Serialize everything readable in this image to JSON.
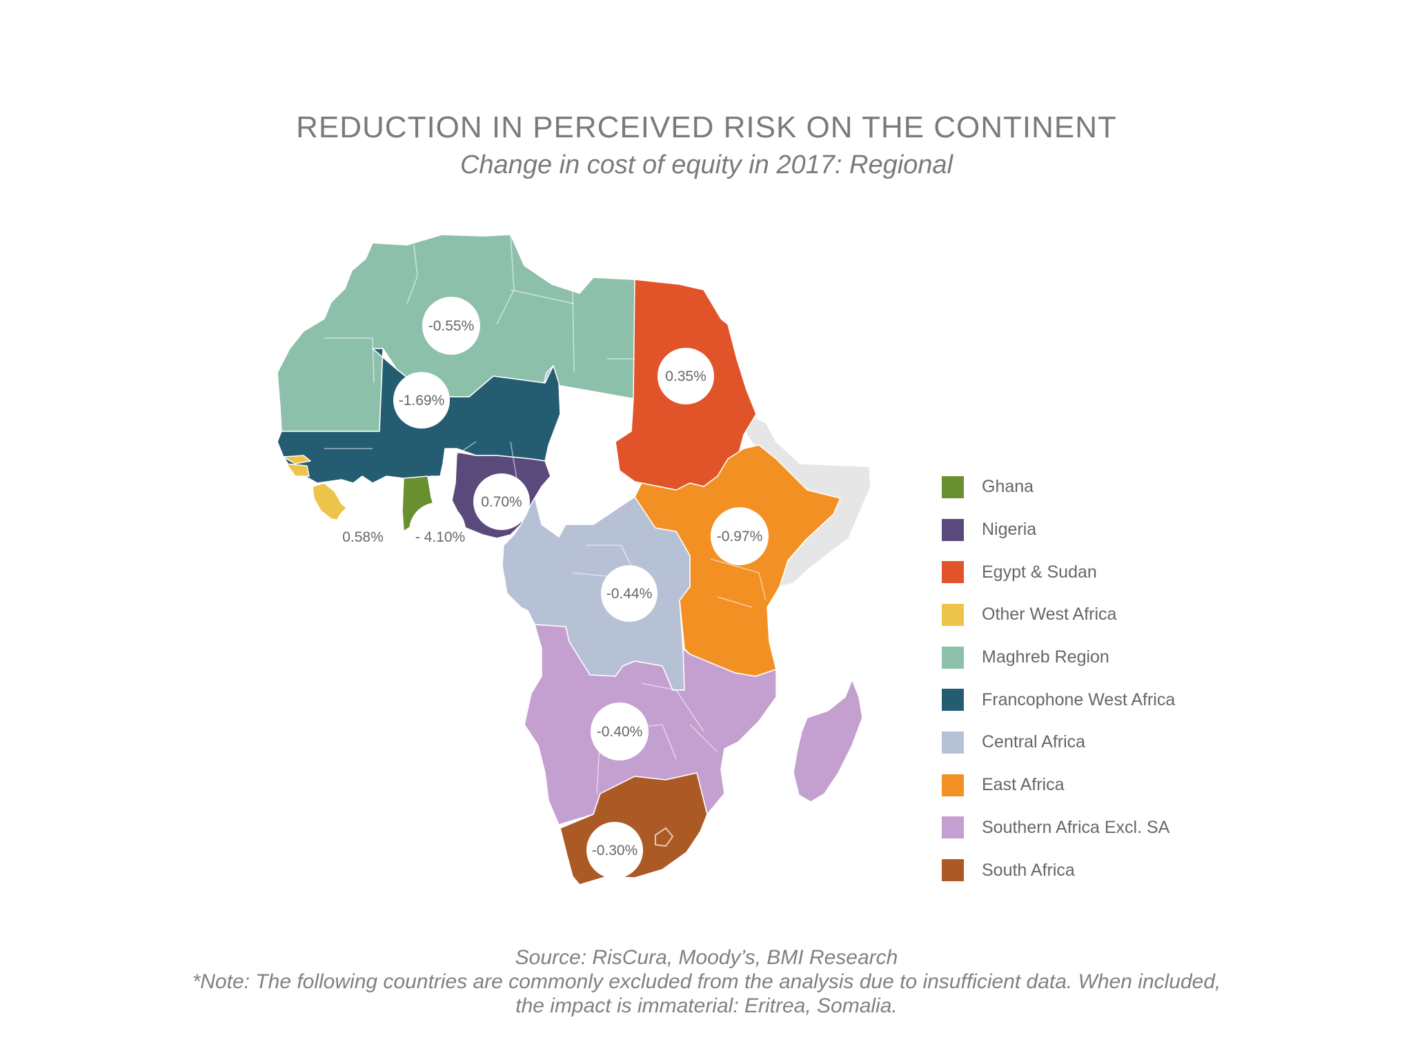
{
  "title": "REDUCTION IN PERCEIVED RISK ON THE CONTINENT",
  "subtitle": "Change in cost of equity in 2017: Regional",
  "regions": [
    {
      "id": "ghana",
      "name": "Ghana",
      "value": "- 4.10%",
      "color": "#6a8f2f"
    },
    {
      "id": "nigeria",
      "name": "Nigeria",
      "value": "0.70%",
      "color": "#5a4a7c"
    },
    {
      "id": "egypt_sudan",
      "name": "Egypt & Sudan",
      "value": "0.35%",
      "color": "#e1542a"
    },
    {
      "id": "other_west",
      "name": "Other West Africa",
      "value": "0.58%",
      "color": "#ecc44a"
    },
    {
      "id": "maghreb",
      "name": "Maghreb Region",
      "value": "-0.55%",
      "color": "#8cc0ab"
    },
    {
      "id": "francophone",
      "name": "Francophone West Africa",
      "value": "-1.69%",
      "color": "#245d72"
    },
    {
      "id": "central",
      "name": "Central Africa",
      "value": "-0.44%",
      "color": "#b7c1d6"
    },
    {
      "id": "east",
      "name": "East Africa",
      "value": "-0.97%",
      "color": "#f39024"
    },
    {
      "id": "southern",
      "name": "Southern Africa Excl. SA",
      "value": "-0.40%",
      "color": "#c4a0d0"
    },
    {
      "id": "south_africa",
      "name": "South Africa",
      "value": "-0.30%",
      "color": "#ab5a26"
    }
  ],
  "excluded_color": "#e6e6e6",
  "footer": {
    "source": "Source: RisCura, Moody’s, BMI Research",
    "note_line1": "*Note: The following countries are commonly excluded from the analysis due to insufficient data. When included,",
    "note_line2": "the impact is immaterial: Eritrea, Somalia."
  }
}
